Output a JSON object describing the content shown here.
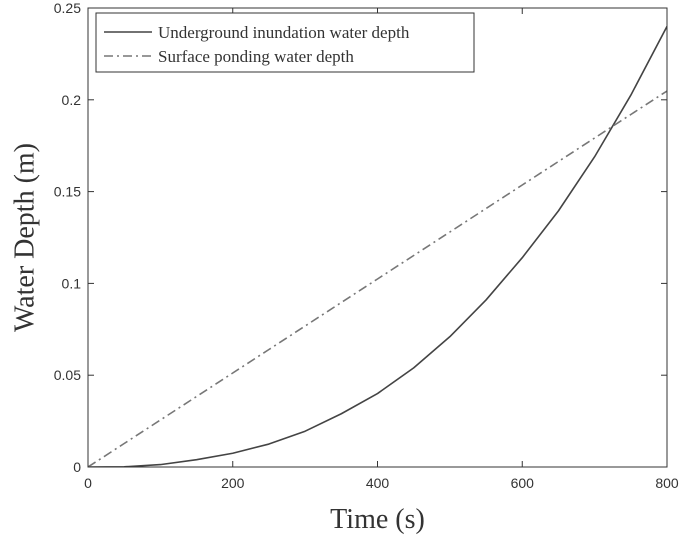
{
  "chart_data": {
    "type": "line",
    "title": "",
    "xlabel": "Time (s)",
    "ylabel": "Water Depth (m)",
    "xlim": [
      0,
      800
    ],
    "ylim": [
      0,
      0.25
    ],
    "xticks": [
      0,
      200,
      400,
      600,
      800
    ],
    "xtick_labels": [
      "0",
      "200",
      "400",
      "600",
      "800"
    ],
    "yticks": [
      0,
      0.05,
      0.1,
      0.15,
      0.2,
      0.25
    ],
    "ytick_labels": [
      "0",
      "0.05",
      "0.1",
      "0.15",
      "0.2",
      "0.25"
    ],
    "grid": false,
    "legend_position": "top-left",
    "x": [
      0,
      50,
      100,
      150,
      200,
      250,
      300,
      350,
      400,
      450,
      500,
      550,
      600,
      650,
      700,
      750,
      800
    ],
    "series": [
      {
        "name": "Underground inundation water depth",
        "line_style": "solid",
        "color": "#444444",
        "values": [
          0,
          0.0001,
          0.0013,
          0.004,
          0.0075,
          0.0125,
          0.0195,
          0.029,
          0.04,
          0.054,
          0.071,
          0.091,
          0.114,
          0.1395,
          0.169,
          0.2025,
          0.24
        ]
      },
      {
        "name": "Surface ponding water depth",
        "line_style": "dashdot",
        "color": "#777777",
        "values": [
          0,
          0.0128,
          0.0256,
          0.0384,
          0.0512,
          0.064,
          0.0768,
          0.0896,
          0.1024,
          0.1152,
          0.128,
          0.1408,
          0.1536,
          0.1664,
          0.1792,
          0.192,
          0.2048
        ]
      }
    ]
  }
}
